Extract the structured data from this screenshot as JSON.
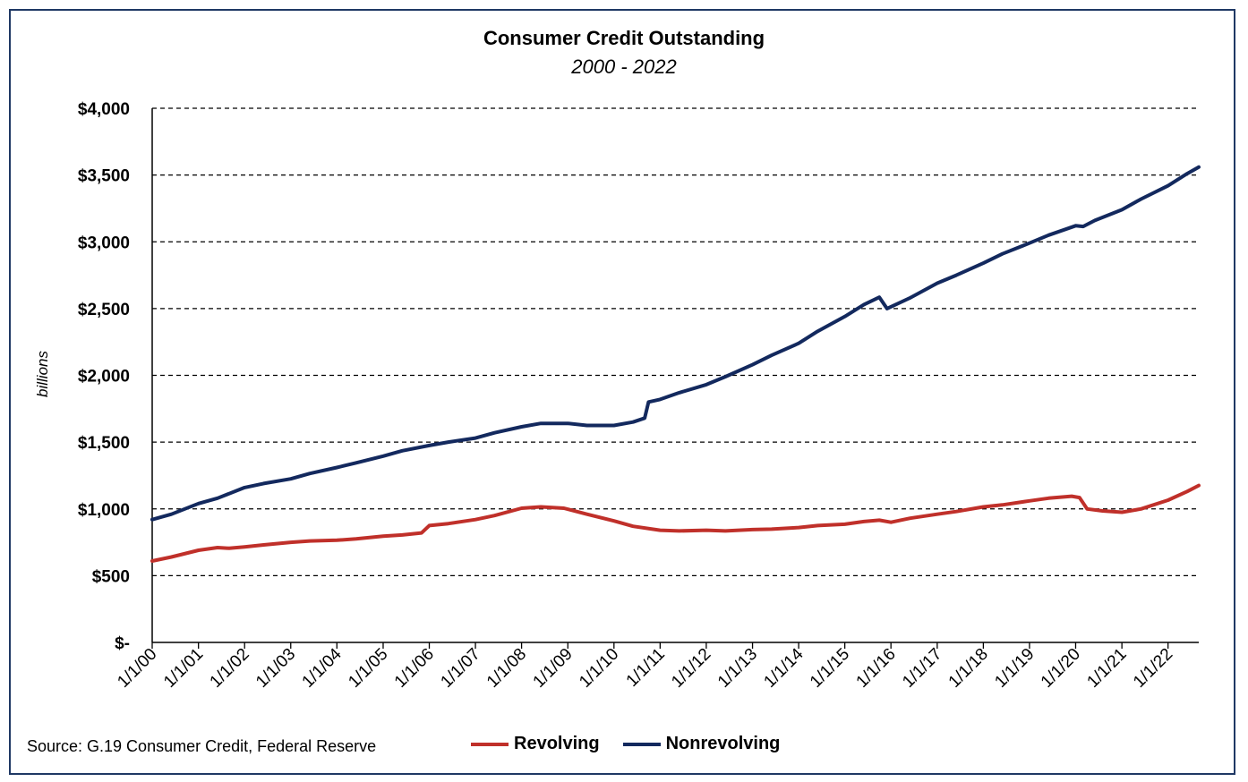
{
  "chart_data": {
    "type": "line",
    "title": "Consumer Credit Outstanding",
    "subtitle": "2000 - 2022",
    "ylabel": "billions",
    "xlabel": "",
    "ylim": [
      0,
      4000
    ],
    "xlim": [
      "2000-01-01",
      "2022-09-01"
    ],
    "y_ticks": [
      {
        "value": 0,
        "label": "$-"
      },
      {
        "value": 500,
        "label": "$500"
      },
      {
        "value": 1000,
        "label": "$1,000"
      },
      {
        "value": 1500,
        "label": "$1,500"
      },
      {
        "value": 2000,
        "label": "$2,000"
      },
      {
        "value": 2500,
        "label": "$2,500"
      },
      {
        "value": 3000,
        "label": "$3,000"
      },
      {
        "value": 3500,
        "label": "$3,500"
      },
      {
        "value": 4000,
        "label": "$4,000"
      }
    ],
    "x_ticks": [
      {
        "date": "2000-01-01",
        "label": "1/1/00"
      },
      {
        "date": "2001-01-01",
        "label": "1/1/01"
      },
      {
        "date": "2002-01-01",
        "label": "1/1/02"
      },
      {
        "date": "2003-01-01",
        "label": "1/1/03"
      },
      {
        "date": "2004-01-01",
        "label": "1/1/04"
      },
      {
        "date": "2005-01-01",
        "label": "1/1/05"
      },
      {
        "date": "2006-01-01",
        "label": "1/1/06"
      },
      {
        "date": "2007-01-01",
        "label": "1/1/07"
      },
      {
        "date": "2008-01-01",
        "label": "1/1/08"
      },
      {
        "date": "2009-01-01",
        "label": "1/1/09"
      },
      {
        "date": "2010-01-01",
        "label": "1/1/10"
      },
      {
        "date": "2011-01-01",
        "label": "1/1/11"
      },
      {
        "date": "2012-01-01",
        "label": "1/1/12"
      },
      {
        "date": "2013-01-01",
        "label": "1/1/13"
      },
      {
        "date": "2014-01-01",
        "label": "1/1/14"
      },
      {
        "date": "2015-01-01",
        "label": "1/1/15"
      },
      {
        "date": "2016-01-01",
        "label": "1/1/16"
      },
      {
        "date": "2017-01-01",
        "label": "1/1/17"
      },
      {
        "date": "2018-01-01",
        "label": "1/1/18"
      },
      {
        "date": "2019-01-01",
        "label": "1/1/19"
      },
      {
        "date": "2020-01-01",
        "label": "1/1/20"
      },
      {
        "date": "2021-01-01",
        "label": "1/1/21"
      },
      {
        "date": "2022-01-01",
        "label": "1/1/22"
      }
    ],
    "grid": "horizontal dashed",
    "legend": "bottom",
    "series": [
      {
        "name": "Revolving",
        "color": "#c0302a",
        "points": [
          [
            "2000-01-01",
            610
          ],
          [
            "2000-06-01",
            640
          ],
          [
            "2001-01-01",
            690
          ],
          [
            "2001-06-01",
            710
          ],
          [
            "2001-09-01",
            705
          ],
          [
            "2002-01-01",
            715
          ],
          [
            "2002-06-01",
            730
          ],
          [
            "2003-01-01",
            750
          ],
          [
            "2003-06-01",
            760
          ],
          [
            "2004-01-01",
            765
          ],
          [
            "2004-06-01",
            775
          ],
          [
            "2005-01-01",
            795
          ],
          [
            "2005-06-01",
            805
          ],
          [
            "2005-11-01",
            820
          ],
          [
            "2006-01-01",
            875
          ],
          [
            "2006-06-01",
            890
          ],
          [
            "2007-01-01",
            920
          ],
          [
            "2007-06-01",
            950
          ],
          [
            "2008-01-01",
            1005
          ],
          [
            "2008-06-01",
            1015
          ],
          [
            "2008-12-01",
            1005
          ],
          [
            "2009-06-01",
            960
          ],
          [
            "2010-01-01",
            910
          ],
          [
            "2010-06-01",
            870
          ],
          [
            "2011-01-01",
            840
          ],
          [
            "2011-06-01",
            835
          ],
          [
            "2012-01-01",
            840
          ],
          [
            "2012-06-01",
            835
          ],
          [
            "2013-01-01",
            845
          ],
          [
            "2013-06-01",
            848
          ],
          [
            "2014-01-01",
            860
          ],
          [
            "2014-06-01",
            875
          ],
          [
            "2015-01-01",
            885
          ],
          [
            "2015-06-01",
            905
          ],
          [
            "2015-10-01",
            915
          ],
          [
            "2016-01-01",
            900
          ],
          [
            "2016-06-01",
            930
          ],
          [
            "2017-01-01",
            960
          ],
          [
            "2017-06-01",
            980
          ],
          [
            "2018-01-01",
            1015
          ],
          [
            "2018-06-01",
            1030
          ],
          [
            "2019-01-01",
            1060
          ],
          [
            "2019-06-01",
            1080
          ],
          [
            "2019-12-01",
            1095
          ],
          [
            "2020-02-01",
            1085
          ],
          [
            "2020-04-01",
            1000
          ],
          [
            "2020-08-01",
            985
          ],
          [
            "2021-01-01",
            975
          ],
          [
            "2021-06-01",
            1000
          ],
          [
            "2022-01-01",
            1065
          ],
          [
            "2022-06-01",
            1130
          ],
          [
            "2022-09-01",
            1175
          ]
        ]
      },
      {
        "name": "Nonrevolving",
        "color": "#13295e",
        "points": [
          [
            "2000-01-01",
            920
          ],
          [
            "2000-06-01",
            960
          ],
          [
            "2001-01-01",
            1040
          ],
          [
            "2001-06-01",
            1080
          ],
          [
            "2002-01-01",
            1160
          ],
          [
            "2002-06-01",
            1190
          ],
          [
            "2003-01-01",
            1225
          ],
          [
            "2003-06-01",
            1265
          ],
          [
            "2004-01-01",
            1310
          ],
          [
            "2004-06-01",
            1345
          ],
          [
            "2005-01-01",
            1395
          ],
          [
            "2005-06-01",
            1435
          ],
          [
            "2006-01-01",
            1475
          ],
          [
            "2006-06-01",
            1500
          ],
          [
            "2007-01-01",
            1530
          ],
          [
            "2007-06-01",
            1570
          ],
          [
            "2008-01-01",
            1615
          ],
          [
            "2008-06-01",
            1640
          ],
          [
            "2009-01-01",
            1640
          ],
          [
            "2009-06-01",
            1625
          ],
          [
            "2010-01-01",
            1625
          ],
          [
            "2010-06-01",
            1650
          ],
          [
            "2010-09-01",
            1680
          ],
          [
            "2010-10-01",
            1800
          ],
          [
            "2011-01-01",
            1820
          ],
          [
            "2011-06-01",
            1870
          ],
          [
            "2012-01-01",
            1930
          ],
          [
            "2012-06-01",
            1990
          ],
          [
            "2013-01-01",
            2080
          ],
          [
            "2013-06-01",
            2150
          ],
          [
            "2014-01-01",
            2240
          ],
          [
            "2014-06-01",
            2330
          ],
          [
            "2015-01-01",
            2440
          ],
          [
            "2015-06-01",
            2530
          ],
          [
            "2015-10-01",
            2585
          ],
          [
            "2015-12-01",
            2500
          ],
          [
            "2016-06-01",
            2580
          ],
          [
            "2017-01-01",
            2690
          ],
          [
            "2017-06-01",
            2750
          ],
          [
            "2018-01-01",
            2840
          ],
          [
            "2018-06-01",
            2910
          ],
          [
            "2019-01-01",
            2990
          ],
          [
            "2019-06-01",
            3050
          ],
          [
            "2020-01-01",
            3120
          ],
          [
            "2020-03-01",
            3115
          ],
          [
            "2020-06-01",
            3160
          ],
          [
            "2021-01-01",
            3240
          ],
          [
            "2021-06-01",
            3320
          ],
          [
            "2022-01-01",
            3420
          ],
          [
            "2022-06-01",
            3510
          ],
          [
            "2022-09-01",
            3560
          ]
        ]
      }
    ],
    "source": "Source: G.19 Consumer Credit, Federal Reserve"
  }
}
